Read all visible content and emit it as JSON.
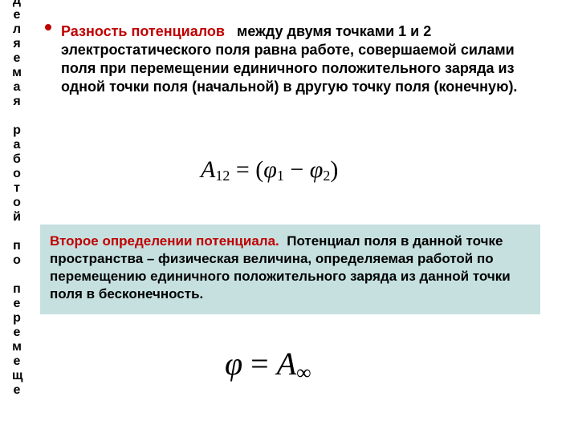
{
  "colors": {
    "red": "#c00000",
    "box_bg": "#c6e0e0",
    "text": "#000000",
    "bg": "#ffffff"
  },
  "vertical_text": "деляемая работой по перемеще",
  "section1": {
    "red_term": "Разность потенциалов",
    "text_after": "между двумя точками  1 и 2 электростатического поля равна работе, совершаемой силами поля при перемещении единичного положительного заряда из одной точки поля (начальной) в другую точку поля (конечную)."
  },
  "formula1": {
    "lhs_var": "A",
    "lhs_sub": "12",
    "eq": " = ",
    "open": "(",
    "phi1": "φ",
    "sub1": "1",
    "minus": " − ",
    "phi2": "φ",
    "sub2": "2",
    "close": ")"
  },
  "section2": {
    "red_term": "Второе определении потенциала.",
    "text_after": "Потенциал поля  в  данной точке  пространства  –  физическая  величина, определяемая  работой по  перемещению  единичного  положительного  заряда  из  данной  точки  поля  в  бесконечность."
  },
  "formula2": {
    "phi": "φ",
    "eq": " = ",
    "var": "A",
    "sub": "∞"
  }
}
